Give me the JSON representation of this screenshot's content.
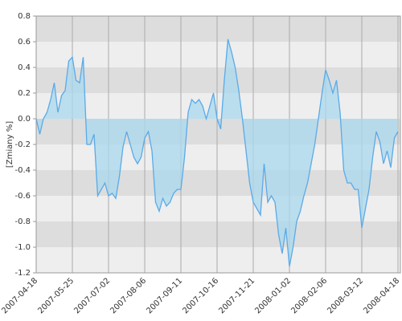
{
  "chart_data": {
    "type": "area",
    "ylabel": "[Zmiany %]",
    "categories": [
      "2007-04-18",
      null,
      null,
      null,
      null,
      null,
      null,
      null,
      null,
      null,
      "2007-05-25",
      null,
      null,
      null,
      null,
      null,
      null,
      null,
      null,
      null,
      "2007-07-02",
      null,
      null,
      null,
      null,
      null,
      null,
      null,
      null,
      null,
      "2007-08-06",
      null,
      null,
      null,
      null,
      null,
      null,
      null,
      null,
      null,
      "2007-09-11",
      null,
      null,
      null,
      null,
      null,
      null,
      null,
      null,
      null,
      "2007-10-16",
      null,
      null,
      null,
      null,
      null,
      null,
      null,
      null,
      null,
      "2007-11-21",
      null,
      null,
      null,
      null,
      null,
      null,
      null,
      null,
      null,
      "2008-01-02",
      null,
      null,
      null,
      null,
      null,
      null,
      null,
      null,
      null,
      "2008-02-06",
      null,
      null,
      null,
      null,
      null,
      null,
      null,
      null,
      null,
      "2008-03-12",
      null,
      null,
      null,
      null,
      null,
      null,
      null,
      null,
      null,
      "2008-04-18"
    ],
    "series": [
      {
        "color": "#5aaae8",
        "values": [
          0,
          -0.12,
          0.0,
          0.05,
          0.15,
          0.28,
          0.05,
          0.18,
          0.22,
          0.45,
          0.48,
          0.3,
          0.28,
          0.48,
          -0.2,
          -0.2,
          -0.12,
          -0.6,
          -0.55,
          -0.5,
          -0.6,
          -0.58,
          -0.62,
          -0.45,
          -0.22,
          -0.1,
          -0.2,
          -0.3,
          -0.35,
          -0.3,
          -0.15,
          -0.1,
          -0.25,
          -0.65,
          -0.72,
          -0.62,
          -0.68,
          -0.65,
          -0.58,
          -0.55,
          -0.55,
          -0.3,
          0.05,
          0.15,
          0.12,
          0.15,
          0.1,
          0.0,
          0.1,
          0.2,
          0.0,
          -0.08,
          0.3,
          0.62,
          0.52,
          0.4,
          0.22,
          0.0,
          -0.25,
          -0.5,
          -0.65,
          -0.7,
          -0.75,
          -0.35,
          -0.65,
          -0.6,
          -0.65,
          -0.9,
          -1.05,
          -0.85,
          -1.15,
          -1.0,
          -0.8,
          -0.72,
          -0.6,
          -0.5,
          -0.35,
          -0.2,
          0.0,
          0.2,
          0.38,
          0.3,
          0.2,
          0.3,
          0.05,
          -0.4,
          -0.5,
          -0.5,
          -0.55,
          -0.55,
          -0.85,
          -0.7,
          -0.55,
          -0.3,
          -0.1,
          -0.18,
          -0.35,
          -0.25,
          -0.38,
          -0.15,
          -0.1
        ]
      }
    ],
    "ylim": [
      -1.2,
      0.8
    ],
    "yticks": [
      0.8,
      0.6,
      0.4,
      0.2,
      {
        "value": 0,
        "label": "0.0"
      },
      -0.2,
      -0.4,
      -0.6,
      -0.8,
      {
        "value": -1,
        "label": "-1.0"
      },
      -1.2
    ],
    "grid": true
  }
}
